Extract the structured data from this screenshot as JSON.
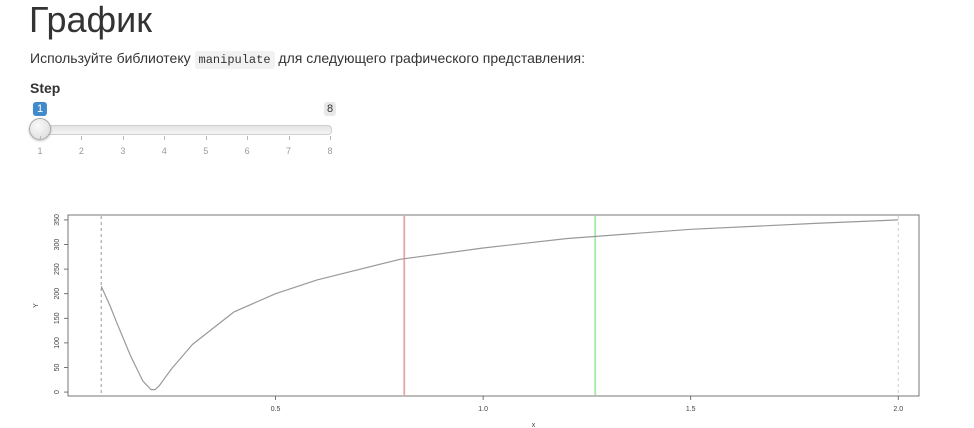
{
  "page": {
    "title": "График",
    "intro_before": "Используйте библиотеку ",
    "intro_code": "manipulate",
    "intro_after": " для следующего графического представления:"
  },
  "slider": {
    "label": "Step",
    "min": 1,
    "max": 8,
    "value": 1,
    "value_label": "1",
    "max_label": "8",
    "ticks": [
      "1",
      "2",
      "3",
      "4",
      "5",
      "6",
      "7",
      "8"
    ],
    "accent_color": "#428bca"
  },
  "chart_data": {
    "type": "line",
    "title": "",
    "xlabel": "x",
    "ylabel": "Y",
    "xlim": [
      0.0,
      2.05
    ],
    "ylim": [
      -8,
      360
    ],
    "x_ticks": [
      0.5,
      1.0,
      1.5,
      2.0
    ],
    "x_tick_labels": [
      "0.5",
      "1.0",
      "1.5",
      "2.0"
    ],
    "y_ticks": [
      0,
      50,
      100,
      150,
      200,
      250,
      300,
      350
    ],
    "y_tick_labels": [
      "0",
      "50",
      "100",
      "150",
      "200",
      "250",
      "300",
      "350"
    ],
    "grid": false,
    "series": [
      {
        "color": "#999999",
        "x": [
          0.08,
          0.1,
          0.12,
          0.15,
          0.18,
          0.2,
          0.21,
          0.22,
          0.23,
          0.25,
          0.3,
          0.4,
          0.5,
          0.6,
          0.8,
          1.0,
          1.2,
          1.5,
          1.8,
          2.0
        ],
        "y": [
          215,
          178,
          136,
          75,
          23,
          5,
          5,
          13,
          25,
          48,
          97,
          163,
          200,
          228,
          270,
          293,
          312,
          331,
          343,
          350
        ]
      }
    ],
    "vlines": [
      {
        "x": 0.08,
        "color": "#999999",
        "style": "dashed"
      },
      {
        "x": 0.81,
        "color": "#e8a6a6",
        "style": "solid"
      },
      {
        "x": 1.27,
        "color": "#a6e8a6",
        "style": "solid"
      },
      {
        "x": 2.0,
        "color": "#cccccc",
        "style": "dashed"
      }
    ]
  }
}
